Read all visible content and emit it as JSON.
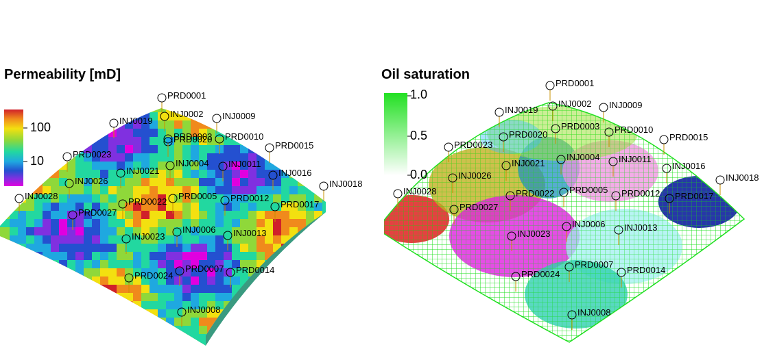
{
  "left": {
    "title": "Permeability [mD]",
    "colorbar": {
      "ticks": [
        "100",
        "10"
      ],
      "colors": [
        "#d0202a",
        "#f08a1c",
        "#f3e010",
        "#8fd83a",
        "#22d8a0",
        "#1fa8e0",
        "#2450d0",
        "#8030e0",
        "#e000e0"
      ]
    },
    "wells": [
      {
        "name": "PRD0001"
      },
      {
        "name": "INJ0019"
      },
      {
        "name": "INJ0002"
      },
      {
        "name": "INJ0009"
      },
      {
        "name": "PRD0020"
      },
      {
        "name": "PRD0003"
      },
      {
        "name": "PRD0010"
      },
      {
        "name": "PRD0015"
      },
      {
        "name": "PRD0023"
      },
      {
        "name": "INJ0021"
      },
      {
        "name": "INJ0004"
      },
      {
        "name": "INJ0011"
      },
      {
        "name": "INJ0016"
      },
      {
        "name": "INJ0026"
      },
      {
        "name": "INJ0018"
      },
      {
        "name": "INJ0028"
      },
      {
        "name": "PRD0022"
      },
      {
        "name": "PRD0005"
      },
      {
        "name": "PRD0012"
      },
      {
        "name": "PRD0017"
      },
      {
        "name": "PRD0027"
      },
      {
        "name": "INJ0006"
      },
      {
        "name": "INJ0013"
      },
      {
        "name": "INJ0023"
      },
      {
        "name": "PRD0007"
      },
      {
        "name": "PRD0014"
      },
      {
        "name": "PRD0024"
      },
      {
        "name": "INJ0008"
      }
    ]
  },
  "right": {
    "title": "Oil saturation",
    "colorbar": {
      "ticks": [
        "1.0",
        "0.5",
        "0.0"
      ],
      "color": "#22e022"
    },
    "wells": [
      {
        "name": "PRD0001"
      },
      {
        "name": "INJ0019"
      },
      {
        "name": "INJ0002"
      },
      {
        "name": "INJ0009"
      },
      {
        "name": "PRD0020"
      },
      {
        "name": "PRD0003"
      },
      {
        "name": "PRD0010"
      },
      {
        "name": "PRD0015"
      },
      {
        "name": "PRD0023"
      },
      {
        "name": "INJ0004"
      },
      {
        "name": "INJ0011"
      },
      {
        "name": "INJ0021"
      },
      {
        "name": "INJ0016"
      },
      {
        "name": "INJ0026"
      },
      {
        "name": "INJ0018"
      },
      {
        "name": "INJ0028"
      },
      {
        "name": "PRD0005"
      },
      {
        "name": "PRD0012"
      },
      {
        "name": "PRD0022"
      },
      {
        "name": "PRD0017"
      },
      {
        "name": "PRD0027"
      },
      {
        "name": "INJ0006"
      },
      {
        "name": "INJ0013"
      },
      {
        "name": "INJ0023"
      },
      {
        "name": "PRD0007"
      },
      {
        "name": "PRD0014"
      },
      {
        "name": "PRD0024"
      },
      {
        "name": "INJ0008"
      }
    ]
  }
}
